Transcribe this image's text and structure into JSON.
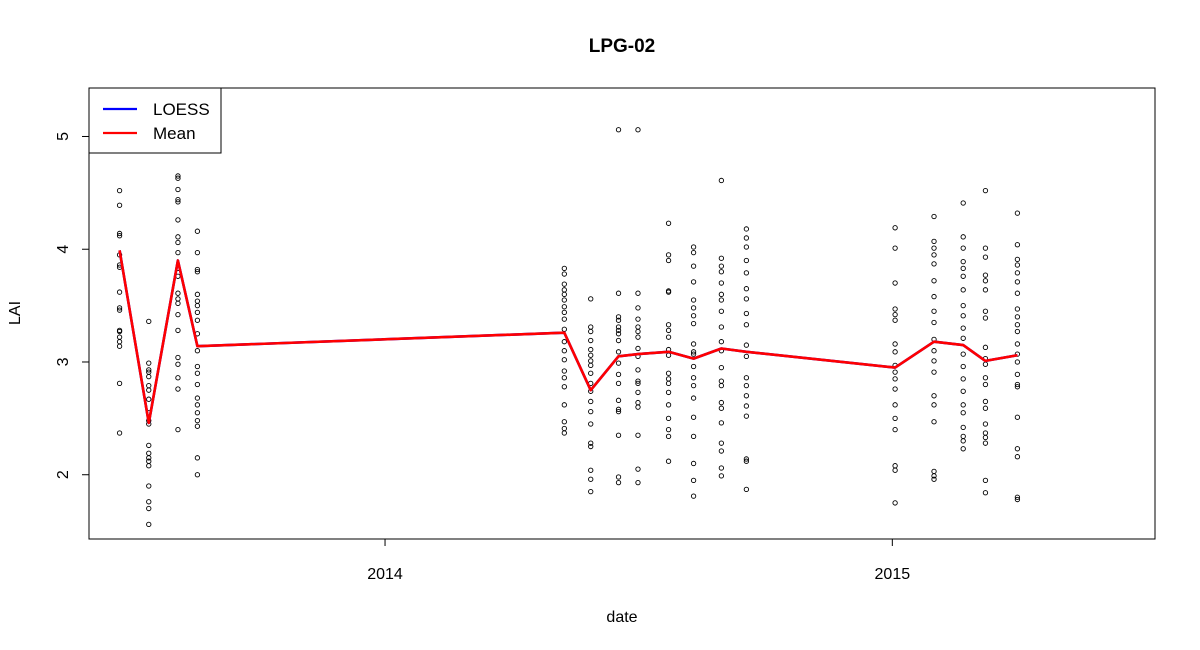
{
  "chart_data": {
    "type": "scatter",
    "title": "LPG-02",
    "xlabel": "date",
    "ylabel": "LAI",
    "xlim": [
      "2013-06-02",
      "2015-07-09"
    ],
    "ylim": [
      1.43,
      5.43
    ],
    "x_ticks": [
      {
        "date": "2014-01-01",
        "label": "2014"
      },
      {
        "date": "2015-01-01",
        "label": "2015"
      }
    ],
    "y_ticks": [
      2,
      3,
      4,
      5
    ],
    "grid": false,
    "legend": {
      "position": "top-left",
      "entries": [
        {
          "label": "LOESS",
          "color": "#0000ff"
        },
        {
          "label": "Mean",
          "color": "#ff0000"
        }
      ]
    },
    "observations": [
      {
        "date": "2013-06-24",
        "values": [
          4.52,
          4.39,
          4.14,
          4.12,
          3.95,
          3.86,
          3.84,
          3.62,
          3.48,
          3.46,
          3.28,
          3.27,
          3.22,
          3.18,
          3.14,
          2.81,
          2.37
        ]
      },
      {
        "date": "2013-07-15",
        "values": [
          3.36,
          2.99,
          2.93,
          2.91,
          2.87,
          2.79,
          2.75,
          2.67,
          2.55,
          2.48,
          2.45,
          2.26,
          2.19,
          2.15,
          2.12,
          2.08,
          1.9,
          1.76,
          1.7,
          1.56
        ]
      },
      {
        "date": "2013-08-05",
        "values": [
          4.65,
          4.63,
          4.53,
          4.44,
          4.42,
          4.26,
          4.11,
          4.06,
          3.97,
          3.83,
          3.76,
          3.61,
          3.56,
          3.52,
          3.42,
          3.28,
          3.04,
          2.98,
          2.86,
          2.76,
          2.4
        ]
      },
      {
        "date": "2013-08-19",
        "values": [
          4.16,
          3.97,
          3.82,
          3.8,
          3.6,
          3.54,
          3.5,
          3.44,
          3.37,
          3.25,
          3.1,
          2.96,
          2.9,
          2.8,
          2.68,
          2.62,
          2.55,
          2.48,
          2.43,
          2.15,
          2.0
        ]
      },
      {
        "date": "2014-05-10",
        "values": [
          3.83,
          3.78,
          3.69,
          3.64,
          3.6,
          3.55,
          3.49,
          3.44,
          3.38,
          3.29,
          3.18,
          3.1,
          3.02,
          2.92,
          2.86,
          2.78,
          2.62,
          2.47,
          2.41,
          2.37
        ]
      },
      {
        "date": "2014-05-29",
        "values": [
          3.56,
          3.31,
          3.27,
          3.19,
          3.11,
          3.06,
          3.01,
          2.97,
          2.9,
          2.81,
          2.74,
          2.65,
          2.56,
          2.45,
          2.28,
          2.25,
          2.04,
          1.96,
          1.85
        ]
      },
      {
        "date": "2014-06-18",
        "values": [
          5.06,
          3.61,
          3.4,
          3.37,
          3.31,
          3.28,
          3.25,
          3.19,
          3.09,
          2.99,
          2.89,
          2.81,
          2.66,
          2.58,
          2.56,
          2.35,
          1.98,
          1.93
        ]
      },
      {
        "date": "2014-07-02",
        "values": [
          5.06,
          3.61,
          3.48,
          3.38,
          3.31,
          3.27,
          3.22,
          3.12,
          3.05,
          2.93,
          2.83,
          2.81,
          2.73,
          2.64,
          2.6,
          2.35,
          2.05,
          1.93
        ]
      },
      {
        "date": "2014-07-24",
        "values": [
          4.23,
          3.95,
          3.9,
          3.63,
          3.62,
          3.33,
          3.28,
          3.22,
          3.11,
          3.06,
          2.9,
          2.85,
          2.81,
          2.73,
          2.62,
          2.5,
          2.4,
          2.34,
          2.12
        ]
      },
      {
        "date": "2014-08-11",
        "values": [
          4.02,
          3.97,
          3.85,
          3.71,
          3.55,
          3.48,
          3.41,
          3.34,
          3.16,
          3.09,
          3.07,
          2.96,
          2.86,
          2.79,
          2.68,
          2.51,
          2.34,
          2.1,
          1.95,
          1.81
        ]
      },
      {
        "date": "2014-08-31",
        "values": [
          4.61,
          3.92,
          3.85,
          3.8,
          3.7,
          3.6,
          3.55,
          3.45,
          3.31,
          3.18,
          3.1,
          2.95,
          2.83,
          2.79,
          2.64,
          2.59,
          2.46,
          2.28,
          2.21,
          2.06,
          1.99
        ]
      },
      {
        "date": "2014-09-18",
        "values": [
          4.18,
          4.1,
          4.02,
          3.9,
          3.79,
          3.65,
          3.56,
          3.43,
          3.33,
          3.15,
          3.05,
          2.86,
          2.79,
          2.7,
          2.61,
          2.52,
          2.14,
          2.12,
          1.87
        ]
      },
      {
        "date": "2015-01-03",
        "values": [
          4.19,
          4.01,
          3.7,
          3.47,
          3.42,
          3.37,
          3.16,
          3.09,
          2.97,
          2.91,
          2.85,
          2.76,
          2.62,
          2.5,
          2.4,
          2.08,
          2.04,
          1.75
        ]
      },
      {
        "date": "2015-01-31",
        "values": [
          4.29,
          4.07,
          4.01,
          3.95,
          3.87,
          3.72,
          3.58,
          3.45,
          3.35,
          3.2,
          3.1,
          3.01,
          2.91,
          2.7,
          2.62,
          2.47,
          2.03,
          1.99,
          1.96
        ]
      },
      {
        "date": "2015-02-21",
        "values": [
          4.41,
          4.11,
          4.01,
          3.89,
          3.83,
          3.76,
          3.64,
          3.5,
          3.41,
          3.3,
          3.21,
          3.07,
          2.96,
          2.85,
          2.74,
          2.62,
          2.55,
          2.42,
          2.34,
          2.3,
          2.23
        ]
      },
      {
        "date": "2015-03-09",
        "values": [
          4.52,
          4.01,
          3.93,
          3.77,
          3.72,
          3.64,
          3.45,
          3.39,
          3.13,
          3.03,
          2.98,
          2.86,
          2.8,
          2.65,
          2.59,
          2.45,
          2.37,
          2.33,
          2.28,
          1.95,
          1.84
        ]
      },
      {
        "date": "2015-04-01",
        "values": [
          4.32,
          4.04,
          3.91,
          3.86,
          3.79,
          3.71,
          3.61,
          3.47,
          3.4,
          3.33,
          3.27,
          3.16,
          3.07,
          3.0,
          2.89,
          2.8,
          2.78,
          2.51,
          2.23,
          2.16,
          1.8,
          1.78
        ]
      }
    ],
    "series": [
      {
        "name": "LOESS",
        "color": "#0000ff",
        "points": [
          {
            "date": "2013-06-24",
            "value": 3.99
          },
          {
            "date": "2013-07-15",
            "value": 2.46
          },
          {
            "date": "2013-08-05",
            "value": 3.9
          },
          {
            "date": "2013-08-19",
            "value": 3.14
          },
          {
            "date": "2014-05-10",
            "value": 3.26
          },
          {
            "date": "2014-05-29",
            "value": 2.75
          },
          {
            "date": "2014-06-18",
            "value": 3.05
          },
          {
            "date": "2014-07-02",
            "value": 3.07
          },
          {
            "date": "2014-07-24",
            "value": 3.09
          },
          {
            "date": "2014-08-11",
            "value": 3.03
          },
          {
            "date": "2014-08-31",
            "value": 3.12
          },
          {
            "date": "2014-09-18",
            "value": 3.09
          },
          {
            "date": "2015-01-03",
            "value": 2.95
          },
          {
            "date": "2015-01-31",
            "value": 3.18
          },
          {
            "date": "2015-02-21",
            "value": 3.15
          },
          {
            "date": "2015-03-09",
            "value": 3.01
          },
          {
            "date": "2015-04-01",
            "value": 3.06
          }
        ]
      },
      {
        "name": "Mean",
        "color": "#ff0000",
        "points": [
          {
            "date": "2013-06-24",
            "value": 3.99
          },
          {
            "date": "2013-07-15",
            "value": 2.46
          },
          {
            "date": "2013-08-05",
            "value": 3.9
          },
          {
            "date": "2013-08-19",
            "value": 3.14
          },
          {
            "date": "2014-05-10",
            "value": 3.26
          },
          {
            "date": "2014-05-29",
            "value": 2.75
          },
          {
            "date": "2014-06-18",
            "value": 3.05
          },
          {
            "date": "2014-07-02",
            "value": 3.07
          },
          {
            "date": "2014-07-24",
            "value": 3.09
          },
          {
            "date": "2014-08-11",
            "value": 3.03
          },
          {
            "date": "2014-08-31",
            "value": 3.12
          },
          {
            "date": "2014-09-18",
            "value": 3.09
          },
          {
            "date": "2015-01-03",
            "value": 2.95
          },
          {
            "date": "2015-01-31",
            "value": 3.18
          },
          {
            "date": "2015-02-21",
            "value": 3.15
          },
          {
            "date": "2015-03-09",
            "value": 3.01
          },
          {
            "date": "2015-04-01",
            "value": 3.06
          }
        ]
      }
    ]
  }
}
